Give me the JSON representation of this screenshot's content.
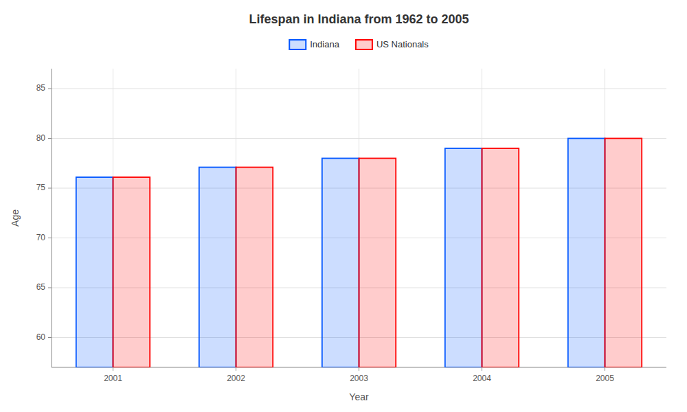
{
  "chart_data": {
    "type": "bar",
    "title": "Lifespan in Indiana from 1962 to 2005",
    "xlabel": "Year",
    "ylabel": "Age",
    "categories": [
      "2001",
      "2002",
      "2003",
      "2004",
      "2005"
    ],
    "series": [
      {
        "name": "Indiana",
        "color": "#0055ff",
        "values": [
          76.1,
          77.1,
          78.0,
          79.0,
          80.0
        ]
      },
      {
        "name": "US Nationals",
        "color": "#ff0000",
        "values": [
          76.1,
          77.1,
          78.0,
          79.0,
          80.0
        ]
      }
    ],
    "ylim": [
      57,
      87
    ],
    "yticks": [
      60,
      65,
      70,
      75,
      80,
      85
    ],
    "grid": true,
    "legend": "top"
  }
}
